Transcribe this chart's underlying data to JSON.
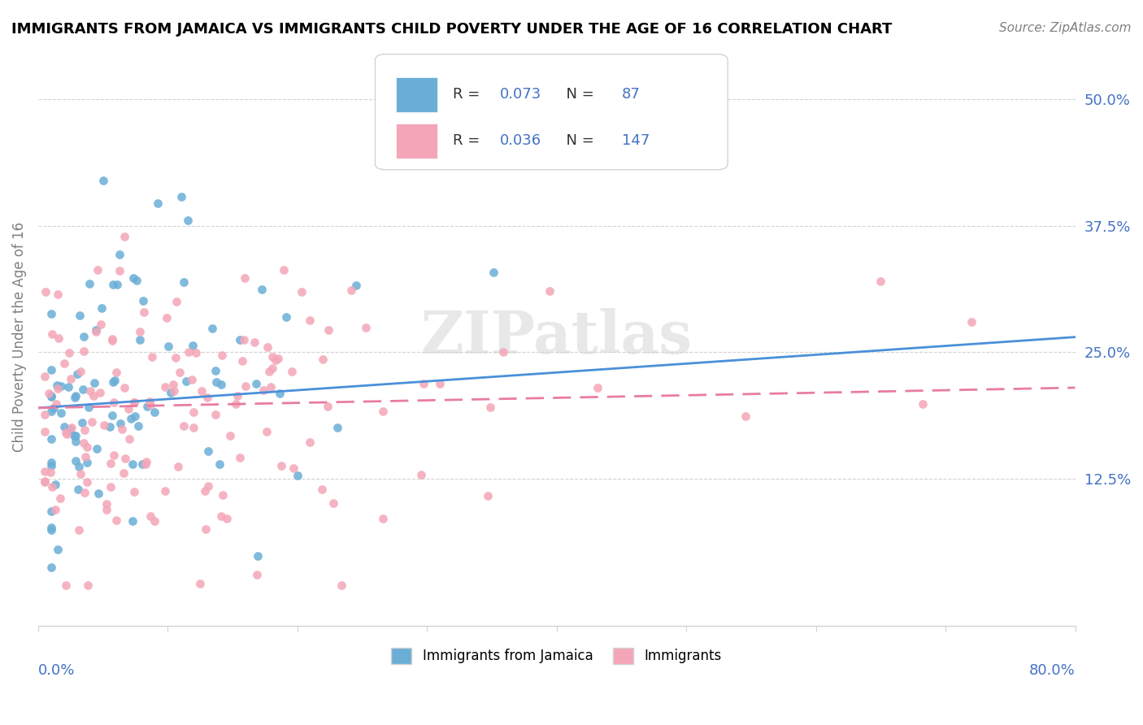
{
  "title": "IMMIGRANTS FROM JAMAICA VS IMMIGRANTS CHILD POVERTY UNDER THE AGE OF 16 CORRELATION CHART",
  "source": "Source: ZipAtlas.com",
  "ylabel": "Child Poverty Under the Age of 16",
  "ytick_values": [
    0.125,
    0.25,
    0.375,
    0.5
  ],
  "ytick_labels": [
    "12.5%",
    "25.0%",
    "37.5%",
    "50.0%"
  ],
  "xlim": [
    0.0,
    0.8
  ],
  "ylim": [
    -0.02,
    0.55
  ],
  "color_blue": "#6aaed6",
  "color_pink": "#f4a6b8",
  "color_blue_line": "#4a90d9",
  "color_pink_line": "#e87da0",
  "color_text_blue": "#4472c4",
  "watermark": "ZIPatlas",
  "blue_label": "Immigrants from Jamaica",
  "pink_label": "Immigrants",
  "leg_R1": "0.073",
  "leg_N1": "87",
  "leg_R2": "0.036",
  "leg_N2": "147",
  "blue_trend_y": [
    0.195,
    0.265
  ],
  "pink_trend_y": [
    0.195,
    0.215
  ]
}
